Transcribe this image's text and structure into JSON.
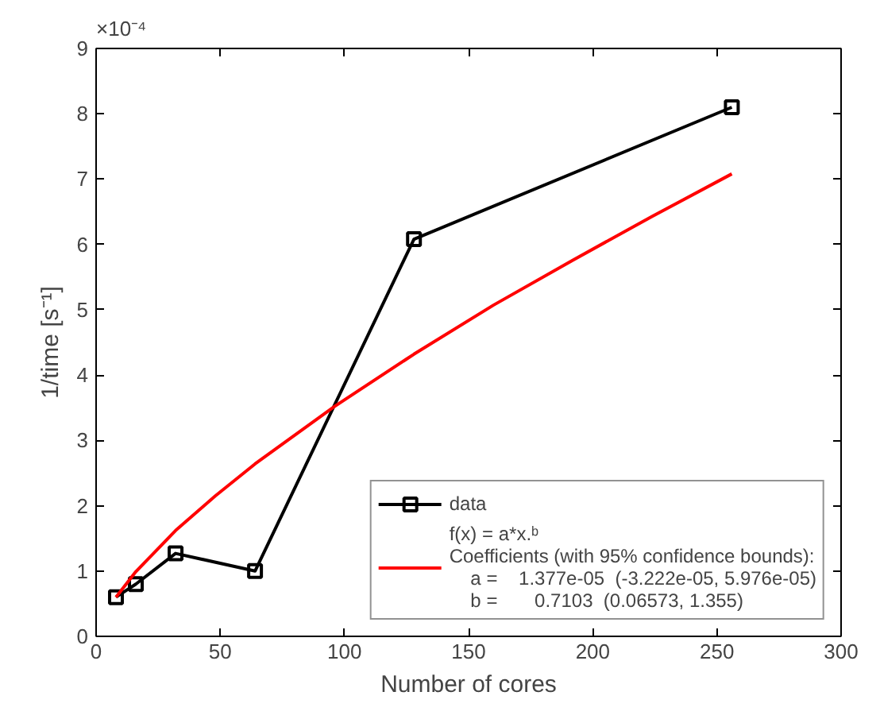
{
  "chart_data": {
    "type": "line",
    "xlabel": "Number of cores",
    "ylabel": "1/time [s⁻¹]",
    "annotations": [
      "×10⁻⁴"
    ],
    "series": [
      {
        "name": "data",
        "color": "#000000",
        "marker": "square",
        "x": [
          8,
          16,
          32,
          64,
          128,
          256
        ],
        "values": [
          0.6,
          0.8,
          1.27,
          1.0,
          6.08,
          8.1
        ]
      },
      {
        "name": "f(x) = a*x.ᵇ\nCoefficients (with 95% confidence bounds):\n    a =    1.377e-05  (-3.222e-05, 5.976e-05)\n    b =       0.7103  (0.06573, 1.355)",
        "color": "#ff0000",
        "marker": "none",
        "x": [
          8,
          16,
          32,
          48,
          64,
          96,
          128,
          160,
          192,
          224,
          256
        ],
        "values": [
          0.6,
          0.99,
          1.62,
          2.15,
          2.64,
          3.52,
          4.32,
          5.07,
          5.76,
          6.43,
          7.08
        ]
      }
    ],
    "xlim": [
      0,
      300
    ],
    "ylim": [
      0,
      9
    ],
    "xticks": [
      0,
      50,
      100,
      150,
      200,
      250,
      300
    ],
    "yticks": [
      0,
      1,
      2,
      3,
      4,
      5,
      6,
      7,
      8,
      9
    ],
    "grid": false,
    "legend": "bottom right"
  }
}
